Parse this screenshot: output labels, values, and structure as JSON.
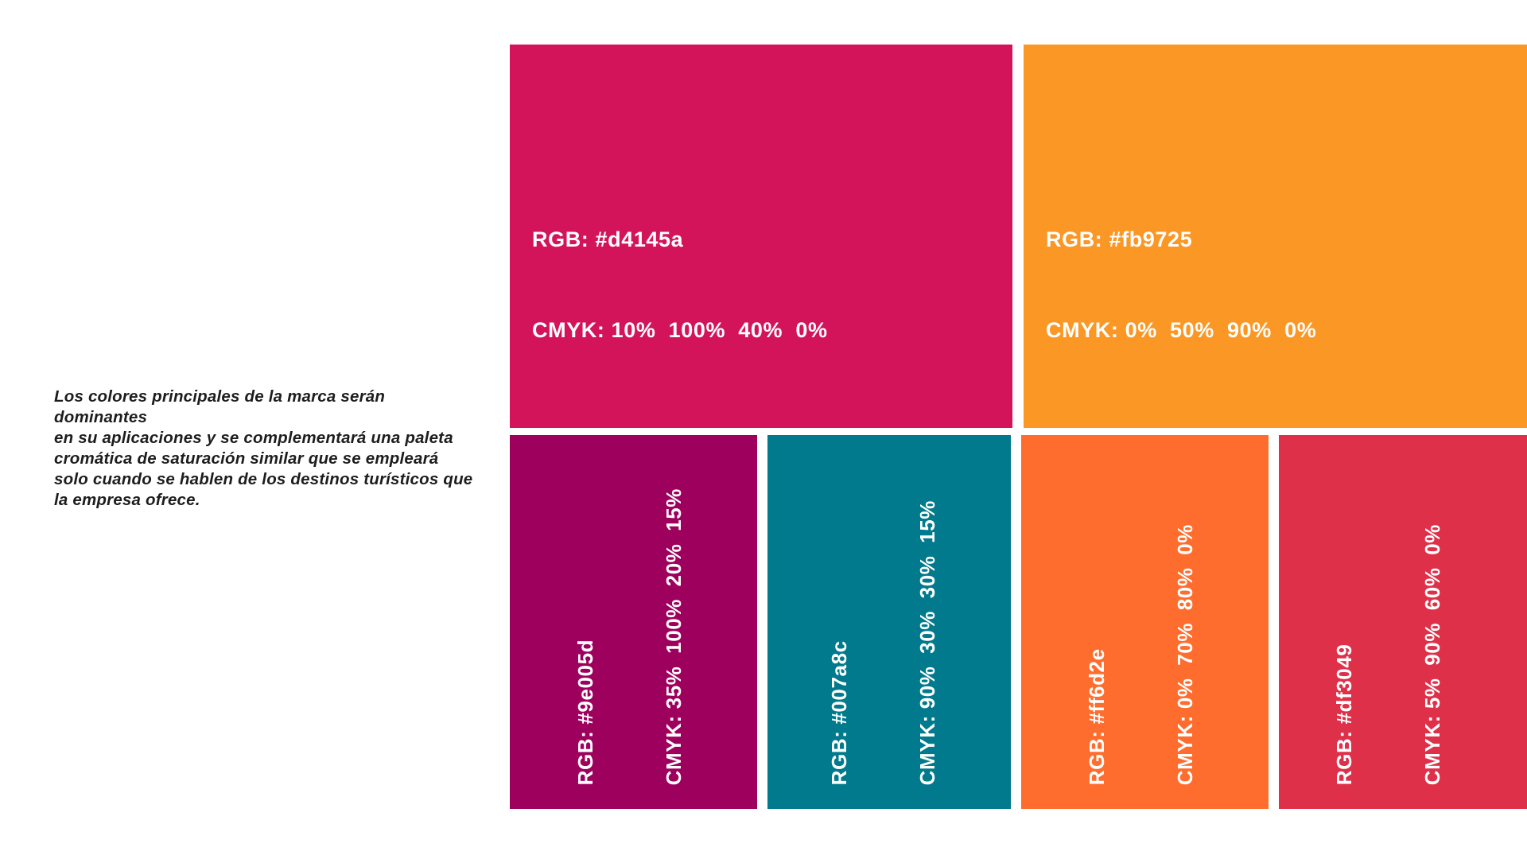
{
  "intro": {
    "lines": [
      "Los colores principales de la marca serán dominantes",
      "en su aplicaciones y se complementará una paleta",
      "cromática de saturación similar que se empleará",
      "solo cuando se hablen de los destinos turísticos que",
      "la empresa ofrece."
    ],
    "text_color": "#1d1d1d"
  },
  "palette": {
    "label_text_color": "#ffffff",
    "primary": [
      {
        "name": "pink-magenta",
        "hex": "#d4145a",
        "rgb_label": "RGB: #d4145a",
        "cmyk_label": "CMYK: 10%  100%  40%  0%"
      },
      {
        "name": "orange",
        "hex": "#fb9725",
        "rgb_label": "RGB: #fb9725",
        "cmyk_label": "CMYK: 0%  50%  90%  0%"
      }
    ],
    "secondary": [
      {
        "name": "dark-magenta",
        "hex": "#9e005d",
        "rgb_label": "RGB: #9e005d",
        "cmyk_label": "CMYK: 35%  100%  20%  15%"
      },
      {
        "name": "teal",
        "hex": "#007a8c",
        "rgb_label": "RGB: #007a8c",
        "cmyk_label": "CMYK: 90%  30%  30%  15%"
      },
      {
        "name": "bright-orange",
        "hex": "#ff6d2e",
        "rgb_label": "RGB: #ff6d2e",
        "cmyk_label": "CMYK: 0%  70%  80%  0%"
      },
      {
        "name": "crimson-red",
        "hex": "#df3049",
        "rgb_label": "RGB: #df3049",
        "cmyk_label": "CMYK: 5%  90%  60%  0%"
      }
    ]
  }
}
